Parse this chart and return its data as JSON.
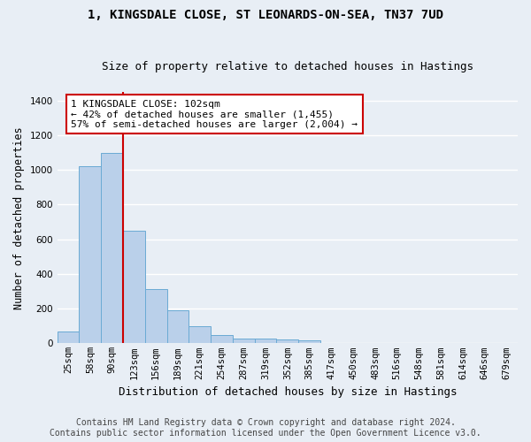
{
  "title": "1, KINGSDALE CLOSE, ST LEONARDS-ON-SEA, TN37 7UD",
  "subtitle": "Size of property relative to detached houses in Hastings",
  "xlabel": "Distribution of detached houses by size in Hastings",
  "ylabel": "Number of detached properties",
  "footer_line1": "Contains HM Land Registry data © Crown copyright and database right 2024.",
  "footer_line2": "Contains public sector information licensed under the Open Government Licence v3.0.",
  "bar_labels": [
    "25sqm",
    "58sqm",
    "90sqm",
    "123sqm",
    "156sqm",
    "189sqm",
    "221sqm",
    "254sqm",
    "287sqm",
    "319sqm",
    "352sqm",
    "385sqm",
    "417sqm",
    "450sqm",
    "483sqm",
    "516sqm",
    "548sqm",
    "581sqm",
    "614sqm",
    "646sqm",
    "679sqm"
  ],
  "bar_values": [
    70,
    1020,
    1100,
    650,
    315,
    190,
    100,
    50,
    30,
    25,
    20,
    15,
    0,
    0,
    0,
    0,
    0,
    0,
    0,
    0,
    0
  ],
  "bar_color": "#bad0ea",
  "bar_edge_color": "#6aaad4",
  "background_color": "#e8eef5",
  "grid_color": "#ffffff",
  "annotation_text": "1 KINGSDALE CLOSE: 102sqm\n← 42% of detached houses are smaller (1,455)\n57% of semi-detached houses are larger (2,004) →",
  "annotation_box_color": "#ffffff",
  "annotation_box_edge": "#cc0000",
  "vline_color": "#cc0000",
  "ylim": [
    0,
    1450
  ],
  "title_fontsize": 10,
  "subtitle_fontsize": 9,
  "axis_label_fontsize": 8.5,
  "tick_fontsize": 7.5,
  "annotation_fontsize": 8,
  "footer_fontsize": 7
}
